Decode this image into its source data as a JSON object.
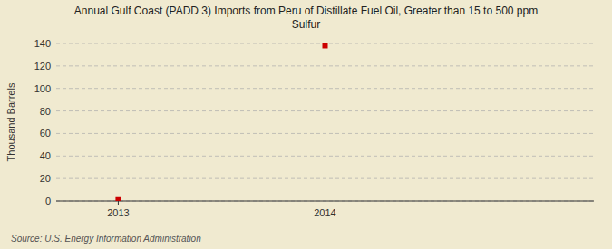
{
  "chart_data": {
    "type": "scatter",
    "title": "Annual Gulf Coast (PADD 3) Imports from Peru of Distillate Fuel Oil, Greater than 15 to 500 ppm\nSulfur",
    "y_label": "Thousand Barrels",
    "source": "Source: U.S. Energy Information Administration",
    "x": [
      2013,
      2014
    ],
    "values": [
      1,
      138
    ],
    "color": "#CC0000",
    "marker": "square",
    "xlim": [
      2012.7,
      2015.3
    ],
    "ylim": [
      0,
      140
    ],
    "xticks": [
      2013,
      2014
    ],
    "yticks": [
      0,
      20,
      40,
      60,
      80,
      100,
      120,
      140
    ],
    "grid": true,
    "vline_x": 2014
  }
}
